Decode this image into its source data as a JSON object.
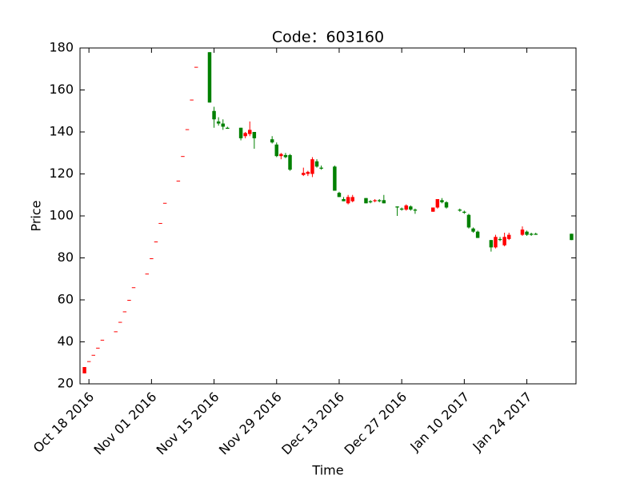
{
  "chart_data": {
    "type": "candlestick",
    "title": "Code：603160",
    "x_label": "Time",
    "y_label": "Price",
    "up_color": "#ff0000",
    "down_color": "#008000",
    "xlim": [
      "2016-10-16",
      "2017-02-04"
    ],
    "ylim": [
      20,
      180
    ],
    "yticks": [
      20,
      40,
      60,
      80,
      100,
      120,
      140,
      160,
      180
    ],
    "xticks": [
      {
        "value": "2016-10-18",
        "label": "Oct 18 2016"
      },
      {
        "value": "2016-11-01",
        "label": "Nov 01 2016"
      },
      {
        "value": "2016-11-15",
        "label": "Nov 15 2016"
      },
      {
        "value": "2016-11-29",
        "label": "Nov 29 2016"
      },
      {
        "value": "2016-12-13",
        "label": "Dec 13 2016"
      },
      {
        "value": "2016-12-27",
        "label": "Dec 27 2016"
      },
      {
        "value": "2017-01-10",
        "label": "Jan 10 2017"
      },
      {
        "value": "2017-01-24",
        "label": "Jan 24 2017"
      }
    ],
    "x": [
      "2016-10-17",
      "2016-10-18",
      "2016-10-19",
      "2016-10-20",
      "2016-10-21",
      "2016-10-24",
      "2016-10-25",
      "2016-10-26",
      "2016-10-27",
      "2016-10-28",
      "2016-10-31",
      "2016-11-01",
      "2016-11-02",
      "2016-11-03",
      "2016-11-04",
      "2016-11-07",
      "2016-11-08",
      "2016-11-09",
      "2016-11-10",
      "2016-11-11",
      "2016-11-14",
      "2016-11-15",
      "2016-11-16",
      "2016-11-17",
      "2016-11-18",
      "2016-11-21",
      "2016-11-22",
      "2016-11-23",
      "2016-11-24",
      "2016-11-28",
      "2016-11-29",
      "2016-11-30",
      "2016-12-01",
      "2016-12-02",
      "2016-12-05",
      "2016-12-06",
      "2016-12-07",
      "2016-12-08",
      "2016-12-09",
      "2016-12-12",
      "2016-12-13",
      "2016-12-14",
      "2016-12-15",
      "2016-12-16",
      "2016-12-19",
      "2016-12-20",
      "2016-12-21",
      "2016-12-22",
      "2016-12-23",
      "2016-12-26",
      "2016-12-27",
      "2016-12-28",
      "2016-12-29",
      "2016-12-30",
      "2017-01-03",
      "2017-01-04",
      "2017-01-05",
      "2017-01-06",
      "2017-01-09",
      "2017-01-10",
      "2017-01-11",
      "2017-01-12",
      "2017-01-13",
      "2017-01-16",
      "2017-01-17",
      "2017-01-18",
      "2017-01-19",
      "2017-01-20",
      "2017-01-23",
      "2017-01-24",
      "2017-01-25",
      "2017-01-26",
      "2017-02-03"
    ],
    "open": [
      25,
      30.8,
      33.8,
      37.2,
      41,
      45,
      49.5,
      54.5,
      60,
      66,
      72.5,
      79.8,
      87.8,
      96.6,
      106.2,
      116.8,
      128.5,
      141.3,
      155.4,
      171,
      178,
      150,
      145,
      144,
      142,
      142,
      138,
      139,
      140,
      136.5,
      134,
      128.5,
      129,
      129,
      119.5,
      120,
      120,
      126,
      123,
      123.5,
      111,
      108,
      106,
      107,
      108.5,
      107,
      107,
      107.5,
      107.5,
      104.5,
      103.5,
      103,
      104.5,
      103,
      102,
      104,
      107.5,
      106.5,
      103,
      102,
      100.5,
      94,
      92.5,
      88.5,
      85,
      89,
      86,
      89,
      91,
      92.5,
      91.5,
      91.5,
      91.5
    ],
    "high": [
      28,
      30.8,
      33.8,
      37.2,
      41,
      45,
      49.5,
      54.5,
      60,
      66,
      72.5,
      79.8,
      87.8,
      96.6,
      106.2,
      116.8,
      128.5,
      141.3,
      155.4,
      171,
      178,
      152,
      147,
      146,
      142.5,
      142,
      140,
      145,
      140,
      138,
      135,
      130,
      130,
      129.5,
      123,
      121.5,
      128,
      127,
      124,
      124,
      111.5,
      109,
      110,
      110,
      108.5,
      107.5,
      108,
      108,
      110,
      104.5,
      104,
      105.5,
      105,
      103.5,
      104,
      108,
      108.5,
      107,
      103.5,
      102.5,
      101,
      94.5,
      93,
      88.5,
      91,
      90,
      92,
      92,
      95,
      93,
      92,
      92,
      91.5
    ],
    "low": [
      25,
      30.8,
      33.8,
      37.2,
      41,
      45,
      49.5,
      54.5,
      60,
      66,
      72.5,
      79.8,
      87.8,
      96.6,
      106.2,
      116.8,
      128.5,
      141.3,
      155.4,
      171,
      154,
      142,
      143,
      141,
      141.5,
      136,
      137,
      138,
      132,
      134.5,
      128,
      127,
      127.5,
      121.5,
      119,
      119,
      118.5,
      123,
      122,
      112,
      109,
      107,
      105.5,
      106.5,
      106,
      106,
      106.5,
      106.5,
      106,
      100,
      102.5,
      102.5,
      102.5,
      101,
      102,
      103.5,
      106,
      103.5,
      102,
      101,
      94,
      92,
      89.5,
      83,
      84.5,
      88,
      85.5,
      88.5,
      90.5,
      90.5,
      90.5,
      91,
      88.5
    ],
    "close": [
      28,
      30.8,
      33.8,
      37.2,
      41,
      45,
      49.5,
      54.5,
      60,
      66,
      72.5,
      79.8,
      87.8,
      96.6,
      106.2,
      116.8,
      128.5,
      141.3,
      155.4,
      171,
      154,
      146,
      144,
      142.5,
      141.5,
      137,
      139.5,
      141,
      137,
      135,
      128.5,
      129.5,
      128,
      122,
      120.5,
      121,
      127,
      123.5,
      122.5,
      112,
      109,
      107,
      109,
      109,
      106,
      106.5,
      107.5,
      107,
      106,
      104,
      103,
      105,
      103,
      102.5,
      104,
      108,
      106.5,
      104,
      102.5,
      101.5,
      94.5,
      92.5,
      89.5,
      85,
      90,
      88.5,
      90,
      91,
      93.5,
      91,
      91,
      91,
      88.5
    ]
  }
}
